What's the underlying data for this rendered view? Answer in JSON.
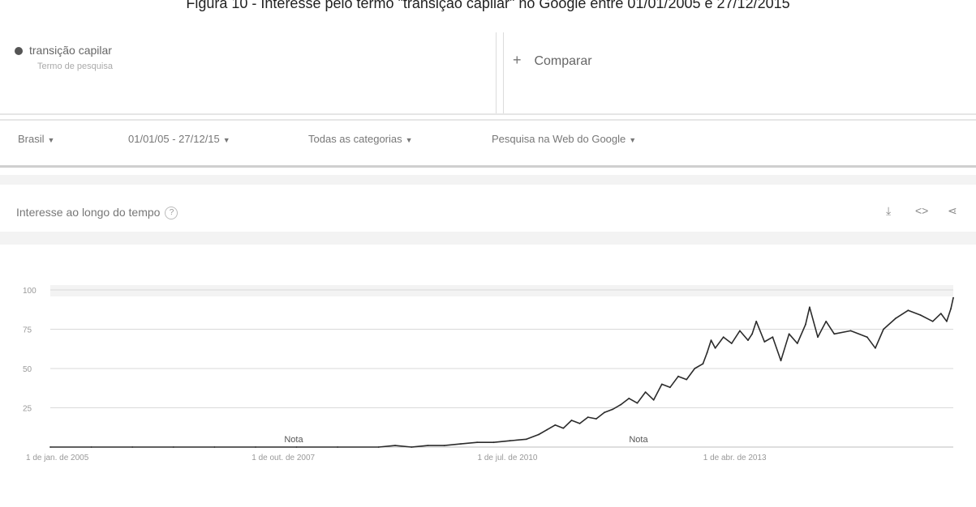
{
  "caption": "Figura 10 - Interesse pelo termo \"transição capilar\" no Google entre 01/01/2005 e 27/12/2015",
  "term": {
    "name": "transição capilar",
    "subtitle": "Termo de pesquisa"
  },
  "compare": {
    "icon": "plus-icon",
    "label": "Comparar"
  },
  "filters": [
    {
      "label": "Brasil"
    },
    {
      "label": "01/01/05 - 27/12/15"
    },
    {
      "label": "Todas as categorias"
    },
    {
      "label": "Pesquisa na Web do Google"
    }
  ],
  "card": {
    "title": "Interesse ao longo do tempo",
    "help": "?",
    "tools": {
      "download": "download-icon",
      "embed": "embed-icon",
      "share": "share-icon"
    }
  },
  "colors": {
    "line": "#2b2b2b",
    "grid": "#d9d9d9",
    "band": "#f3f3f3"
  },
  "chart_data": {
    "type": "line",
    "title": "",
    "xlabel": "",
    "ylabel": "",
    "ylim": [
      0,
      100
    ],
    "yticks": [
      "100",
      "75",
      "50",
      "25"
    ],
    "xticks": [
      "1 de jan. de 2005",
      "1 de out. de 2007",
      "1 de jul. de 2010",
      "1 de abr. de 2013"
    ],
    "xlim": [
      2005.0,
      2016.0
    ],
    "annotations": [
      "Nota",
      "Nota"
    ],
    "annotation_x": [
      2007.85,
      2012.05
    ],
    "series": [
      {
        "values": [
          [
            2005.0,
            0
          ],
          [
            2005.5,
            0
          ],
          [
            2006.0,
            0
          ],
          [
            2006.5,
            0
          ],
          [
            2007.0,
            0
          ],
          [
            2007.5,
            0
          ],
          [
            2008.0,
            0
          ],
          [
            2008.5,
            0
          ],
          [
            2009.0,
            0
          ],
          [
            2009.2,
            1
          ],
          [
            2009.4,
            0
          ],
          [
            2009.6,
            1
          ],
          [
            2009.8,
            1
          ],
          [
            2010.0,
            2
          ],
          [
            2010.2,
            3
          ],
          [
            2010.4,
            3
          ],
          [
            2010.6,
            4
          ],
          [
            2010.8,
            5
          ],
          [
            2010.95,
            8
          ],
          [
            2011.05,
            11
          ],
          [
            2011.15,
            14
          ],
          [
            2011.25,
            12
          ],
          [
            2011.35,
            17
          ],
          [
            2011.45,
            15
          ],
          [
            2011.55,
            19
          ],
          [
            2011.65,
            18
          ],
          [
            2011.75,
            22
          ],
          [
            2011.85,
            24
          ],
          [
            2011.95,
            27
          ],
          [
            2012.05,
            31
          ],
          [
            2012.15,
            28
          ],
          [
            2012.25,
            35
          ],
          [
            2012.35,
            30
          ],
          [
            2012.45,
            40
          ],
          [
            2012.55,
            38
          ],
          [
            2012.65,
            45
          ],
          [
            2012.75,
            43
          ],
          [
            2012.85,
            50
          ],
          [
            2012.95,
            53
          ],
          [
            2013.0,
            60
          ],
          [
            2013.05,
            68
          ],
          [
            2013.1,
            63
          ],
          [
            2013.2,
            70
          ],
          [
            2013.3,
            66
          ],
          [
            2013.4,
            74
          ],
          [
            2013.5,
            68
          ],
          [
            2013.55,
            72
          ],
          [
            2013.6,
            80
          ],
          [
            2013.7,
            67
          ],
          [
            2013.8,
            70
          ],
          [
            2013.9,
            55
          ],
          [
            2014.0,
            72
          ],
          [
            2014.1,
            66
          ],
          [
            2014.2,
            78
          ],
          [
            2014.25,
            89
          ],
          [
            2014.35,
            70
          ],
          [
            2014.45,
            80
          ],
          [
            2014.55,
            72
          ],
          [
            2014.75,
            74
          ],
          [
            2014.95,
            70
          ],
          [
            2015.05,
            63
          ],
          [
            2015.15,
            75
          ],
          [
            2015.3,
            82
          ],
          [
            2015.45,
            87
          ],
          [
            2015.6,
            84
          ],
          [
            2015.75,
            80
          ],
          [
            2015.85,
            85
          ],
          [
            2015.92,
            80
          ],
          [
            2015.97,
            88
          ],
          [
            2016.0,
            95
          ]
        ]
      }
    ],
    "grid": true
  }
}
